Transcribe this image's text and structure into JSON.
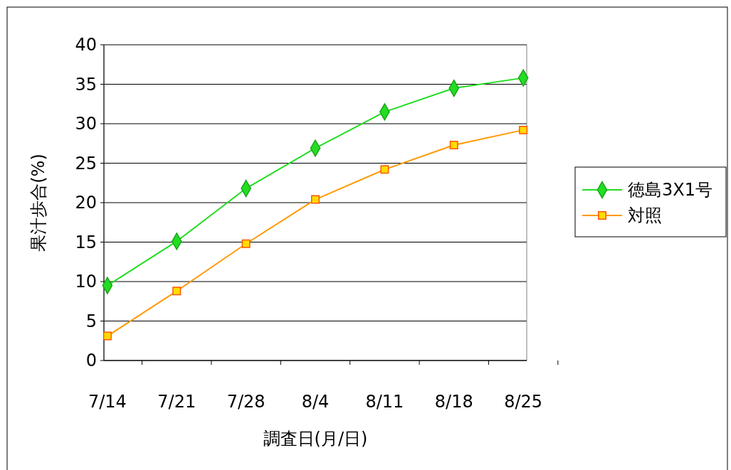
{
  "chart_data": {
    "type": "line",
    "xlabel": "調査日(月/日)",
    "ylabel": "果汁歩合(%)",
    "categories": [
      "7/14",
      "7/21",
      "7/28",
      "8/4",
      "8/11",
      "8/18",
      "8/25"
    ],
    "series": [
      {
        "name": "徳島3X1号",
        "color": "#22dd22",
        "marker": "diamond",
        "values": [
          9.5,
          15.1,
          21.8,
          26.9,
          31.5,
          34.5,
          35.8
        ]
      },
      {
        "name": "対照",
        "color": "#ff9900",
        "marker": "square",
        "values": [
          3.1,
          8.8,
          14.8,
          20.4,
          24.2,
          27.3,
          29.2
        ]
      }
    ],
    "ylim": [
      0,
      40
    ],
    "yticks": [
      0,
      5,
      10,
      15,
      20,
      25,
      30,
      35,
      40
    ],
    "grid": "y",
    "legend": "right",
    "line_style": "solid"
  }
}
